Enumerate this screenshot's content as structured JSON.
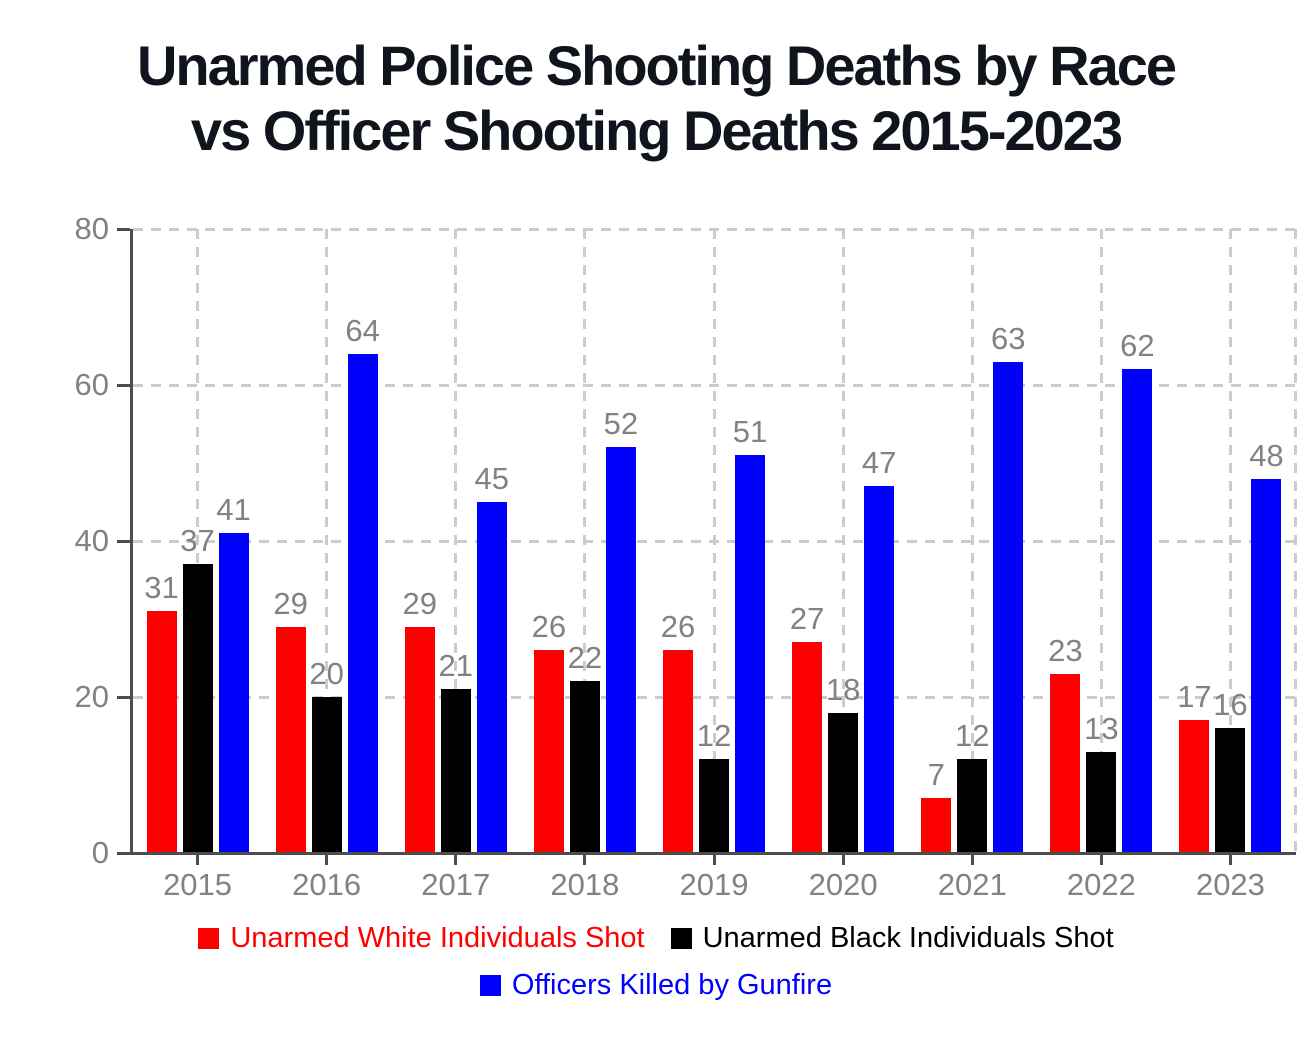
{
  "title": {
    "line1": "Unarmed Police Shooting Deaths by Race",
    "line2": "vs Officer Shooting Deaths 2015-2023"
  },
  "chart_data": {
    "type": "bar",
    "title": "Unarmed Police Shooting Deaths by Race vs Officer Shooting Deaths 2015-2023",
    "categories": [
      "2015",
      "2016",
      "2017",
      "2018",
      "2019",
      "2020",
      "2021",
      "2022",
      "2023"
    ],
    "series": [
      {
        "name": "Unarmed White Individuals Shot",
        "color": "#ff0000",
        "values": [
          31,
          29,
          29,
          26,
          26,
          27,
          7,
          23,
          17
        ]
      },
      {
        "name": "Unarmed Black Individuals Shot",
        "color": "#000000",
        "values": [
          37,
          20,
          21,
          22,
          12,
          18,
          12,
          13,
          16
        ]
      },
      {
        "name": "Officers Killed by Gunfire",
        "color": "#0000ff",
        "values": [
          41,
          64,
          45,
          52,
          51,
          47,
          63,
          62,
          48
        ]
      }
    ],
    "ylim": [
      0,
      80
    ],
    "yticks": [
      0,
      20,
      40,
      60,
      80
    ],
    "grid": true,
    "value_labels": true,
    "legend_position": "bottom",
    "legend_rows": [
      [
        0,
        1
      ],
      [
        2
      ]
    ],
    "xlabel": "",
    "ylabel": "",
    "colors": {
      "title_text": "#10141d",
      "tick_label": "#828282",
      "value_label": "#828282",
      "axis_line": "#4d4d4d",
      "gridline": "#cccccc",
      "background": "#ffffff"
    }
  }
}
